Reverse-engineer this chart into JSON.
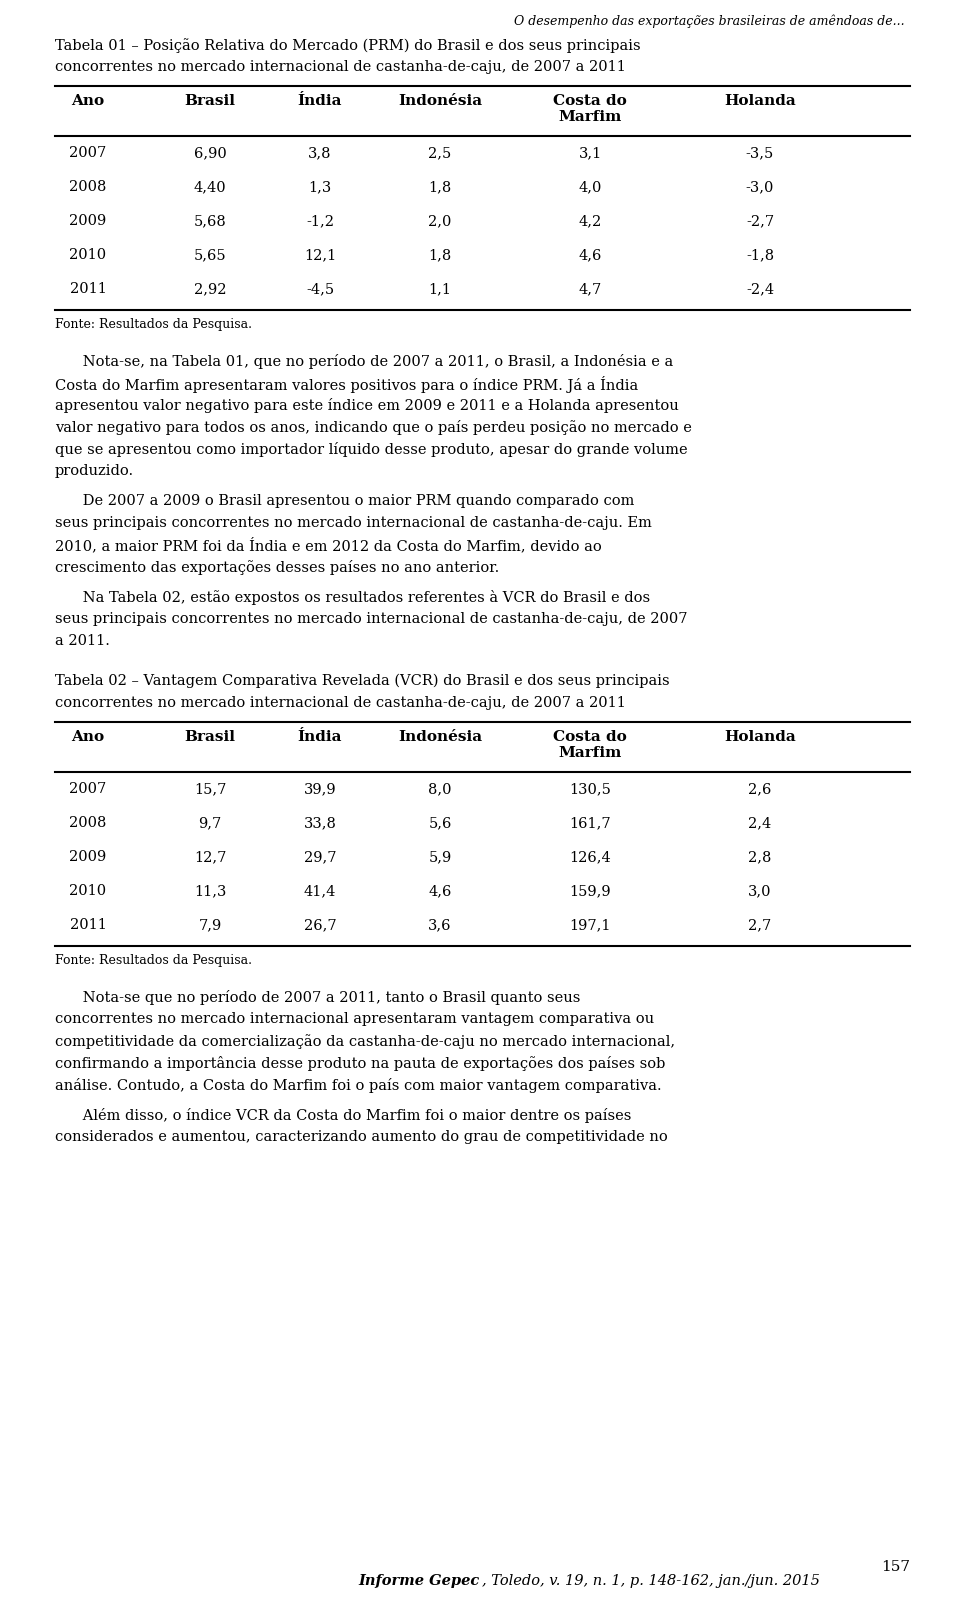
{
  "page_title": "O desempenho das exportações brasileiras de amêndoas de...",
  "table1_title_line1": "Tabela 01 – Posição Relativa do Mercado (PRM) do Brasil e dos seus principais",
  "table1_title_line2": "concorrentes no mercado internacional de castanha-de-caju, de 2007 a 2011",
  "table1_headers": [
    "Ano",
    "Brasil",
    "Índia",
    "Indonésia",
    "Costa do\nMarfim",
    "Holanda"
  ],
  "table1_data": [
    [
      "2007",
      "6,90",
      "3,8",
      "2,5",
      "3,1",
      "-3,5"
    ],
    [
      "2008",
      "4,40",
      "1,3",
      "1,8",
      "4,0",
      "-3,0"
    ],
    [
      "2009",
      "5,68",
      "-1,2",
      "2,0",
      "4,2",
      "-2,7"
    ],
    [
      "2010",
      "5,65",
      "12,1",
      "1,8",
      "4,6",
      "-1,8"
    ],
    [
      "2011",
      "2,92",
      "-4,5",
      "1,1",
      "4,7",
      "-2,4"
    ]
  ],
  "table1_fonte": "Fonte: Resultados da Pesquisa.",
  "para1_lines": [
    "      Nota-se, na Tabela 01, que no período de 2007 a 2011, o Brasil, a Indonésia e a",
    "Costa do Marfim apresentaram valores positivos para o índice PRM. Já a Índia",
    "apresentou valor negativo para este índice em 2009 e 2011 e a Holanda apresentou",
    "valor negativo para todos os anos, indicando que o país perdeu posição no mercado e",
    "que se apresentou como importador líquido desse produto, apesar do grande volume",
    "produzido."
  ],
  "para2_lines": [
    "      De 2007 a 2009 o Brasil apresentou o maior PRM quando comparado com",
    "seus principais concorrentes no mercado internacional de castanha-de-caju. Em",
    "2010, a maior PRM foi da Índia e em 2012 da Costa do Marfim, devido ao",
    "crescimento das exportações desses países no ano anterior."
  ],
  "para3_lines": [
    "      Na Tabela 02, estão expostos os resultados referentes à VCR do Brasil e dos",
    "seus principais concorrentes no mercado internacional de castanha-de-caju, de 2007",
    "a 2011."
  ],
  "table2_title_line1": "Tabela 02 – Vantagem Comparativa Revelada (VCR) do Brasil e dos seus principais",
  "table2_title_line2": "concorrentes no mercado internacional de castanha-de-caju, de 2007 a 2011",
  "table2_headers": [
    "Ano",
    "Brasil",
    "Índia",
    "Indonésia",
    "Costa do\nMarfim",
    "Holanda"
  ],
  "table2_data": [
    [
      "2007",
      "15,7",
      "39,9",
      "8,0",
      "130,5",
      "2,6"
    ],
    [
      "2008",
      "9,7",
      "33,8",
      "5,6",
      "161,7",
      "2,4"
    ],
    [
      "2009",
      "12,7",
      "29,7",
      "5,9",
      "126,4",
      "2,8"
    ],
    [
      "2010",
      "11,3",
      "41,4",
      "4,6",
      "159,9",
      "3,0"
    ],
    [
      "2011",
      "7,9",
      "26,7",
      "3,6",
      "197,1",
      "2,7"
    ]
  ],
  "table2_fonte": "Fonte: Resultados da Pesquisa.",
  "para4_lines": [
    "      Nota-se que no período de 2007 a 2011, tanto o Brasil quanto seus",
    "concorrentes no mercado internacional apresentaram vantagem comparativa ou",
    "competitividade da comercialização da castanha-de-caju no mercado internacional,",
    "confirmando a importância desse produto na pauta de exportações dos países sob",
    "análise. Contudo, a Costa do Marfim foi o país com maior vantagem comparativa."
  ],
  "para5_lines": [
    "      Além disso, o índice VCR da Costa do Marfim foi o maior dentre os países",
    "considerados e aumentou, caracterizando aumento do grau de competitividade no"
  ],
  "page_number": "157",
  "footer_bold": "Informe Gepec",
  "footer_rest": ", Toledo, v. 19, n. 1, p. 148-162, jan./jun. 2015",
  "bg_color": "#ffffff"
}
